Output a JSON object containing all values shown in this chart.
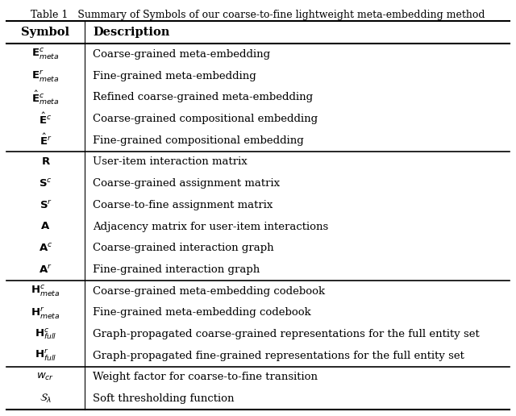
{
  "title": "Table 1   Summary of Symbols of our coarse-to-fine lightweight meta-embedding method",
  "col_headers": [
    "Symbol",
    "Description"
  ],
  "rows": [
    [
      "$\\mathbf{E}^c_{meta}$",
      "Coarse-grained meta-embedding"
    ],
    [
      "$\\mathbf{E}^r_{meta}$",
      "Fine-grained meta-embedding"
    ],
    [
      "$\\hat{\\mathbf{E}}^c_{meta}$",
      "Refined coarse-grained meta-embedding"
    ],
    [
      "$\\hat{\\mathbf{E}}^c$",
      "Coarse-grained compositional embedding"
    ],
    [
      "$\\hat{\\mathbf{E}}^r$",
      "Fine-grained compositional embedding"
    ],
    [
      "$\\mathbf{R}$",
      "User-item interaction matrix"
    ],
    [
      "$\\mathbf{S}^c$",
      "Coarse-grained assignment matrix"
    ],
    [
      "$\\mathbf{S}^r$",
      "Coarse-to-fine assignment matrix"
    ],
    [
      "$\\mathbf{A}$",
      "Adjacency matrix for user-item interactions"
    ],
    [
      "$\\mathbf{A}^c$",
      "Coarse-grained interaction graph"
    ],
    [
      "$\\mathbf{A}^r$",
      "Fine-grained interaction graph"
    ],
    [
      "$\\mathbf{H}^c_{meta}$",
      "Coarse-grained meta-embedding codebook"
    ],
    [
      "$\\mathbf{H}^r_{meta}$",
      "Fine-grained meta-embedding codebook"
    ],
    [
      "$\\mathbf{H}^c_{full}$",
      "Graph-propagated coarse-grained representations for the full entity set"
    ],
    [
      "$\\mathbf{H}^r_{full}$",
      "Graph-propagated fine-grained representations for the full entity set"
    ],
    [
      "$w_{cr}$",
      "Weight factor for coarse-to-fine transition"
    ],
    [
      "$\\mathcal{S}_{\\lambda}$",
      "Soft thresholding function"
    ]
  ],
  "group_separators": [
    5,
    11,
    15
  ],
  "bg_color": "#ffffff",
  "text_color": "#000000",
  "title_fontsize": 9,
  "header_fontsize": 10.5,
  "cell_fontsize": 9.5
}
